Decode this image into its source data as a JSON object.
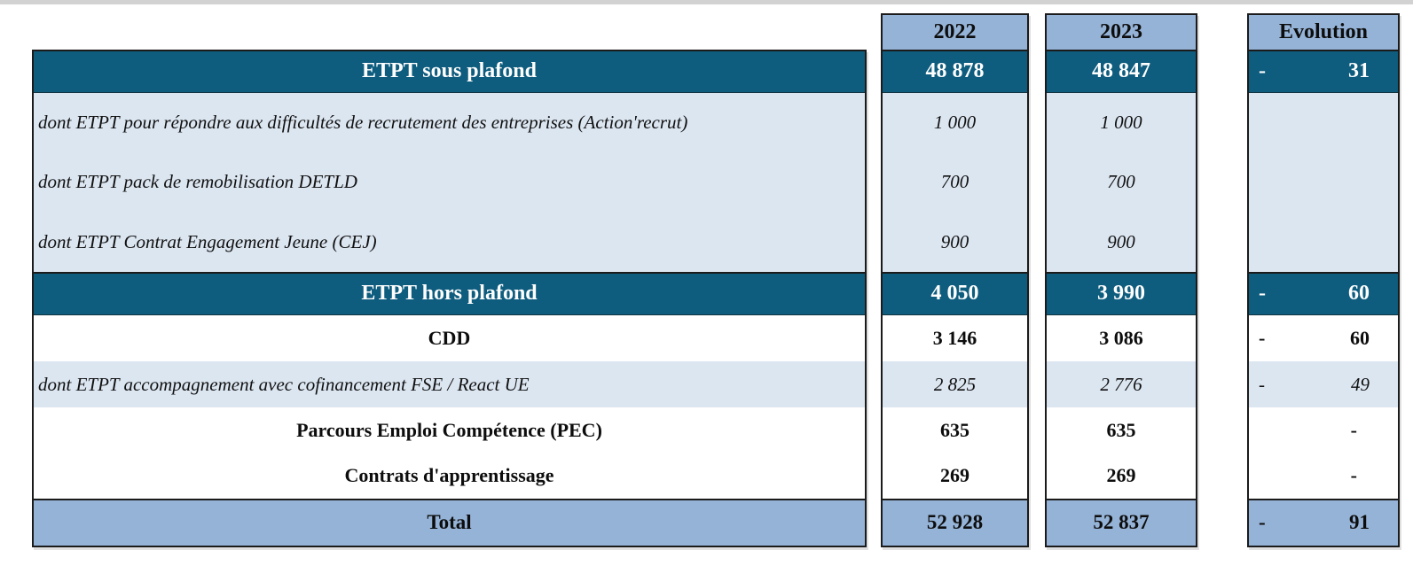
{
  "page": {
    "top_strip_color": "#d2d2d2",
    "background": "#ffffff"
  },
  "colors": {
    "section_teal": "#0e5c7e",
    "header_blue": "#95b3d7",
    "detail_light_blue": "#dce6f1",
    "total_blue": "#95b3d7",
    "border_black": "#1b1b1b",
    "section_text": "#ffffff",
    "body_text": "#000000"
  },
  "table": {
    "columns": [
      "2022",
      "2023",
      "Evolution"
    ],
    "rows": [
      {
        "label": "ETPT sous plafond",
        "v2022": "48 878",
        "v2023": "48 847",
        "evo": {
          "sign": "-",
          "value": "31"
        }
      },
      {
        "label": "dont ETPT pour répondre aux difficultés de recrutement des entreprises (Action'recrut)",
        "v2022": "1 000",
        "v2023": "1 000",
        "evo": {
          "sign": "",
          "value": ""
        }
      },
      {
        "label": "dont ETPT pack de remobilisation DETLD",
        "v2022": "700",
        "v2023": "700",
        "evo": {
          "sign": "",
          "value": ""
        }
      },
      {
        "label": "dont ETPT Contrat Engagement Jeune (CEJ)",
        "v2022": "900",
        "v2023": "900",
        "evo": {
          "sign": "",
          "value": ""
        }
      },
      {
        "label": "ETPT hors plafond",
        "v2022": "4 050",
        "v2023": "3 990",
        "evo": {
          "sign": "-",
          "value": "60"
        }
      },
      {
        "label": "CDD",
        "v2022": "3 146",
        "v2023": "3 086",
        "evo": {
          "sign": "-",
          "value": "60"
        }
      },
      {
        "label": "dont ETPT accompagnement avec cofinancement FSE / React UE",
        "v2022": "2 825",
        "v2023": "2 776",
        "evo": {
          "sign": "-",
          "value": "49"
        }
      },
      {
        "label": "Parcours Emploi Compétence (PEC)",
        "v2022": "635",
        "v2023": "635",
        "evo": {
          "sign": "",
          "value": "-"
        }
      },
      {
        "label": "Contrats d'apprentissage",
        "v2022": "269",
        "v2023": "269",
        "evo": {
          "sign": "",
          "value": "-"
        }
      },
      {
        "label": "Total",
        "v2022": "52 928",
        "v2023": "52 837",
        "evo": {
          "sign": "-",
          "value": "91"
        }
      }
    ]
  },
  "chart_data": {
    "type": "table",
    "columns": [
      "",
      "2022",
      "2023",
      "Evolution"
    ],
    "rows": [
      [
        "ETPT sous plafond",
        48878,
        48847,
        -31
      ],
      [
        "dont ETPT pour répondre aux difficultés de recrutement des entreprises (Action'recrut)",
        1000,
        1000,
        null
      ],
      [
        "dont ETPT pack de remobilisation DETLD",
        700,
        700,
        null
      ],
      [
        "dont ETPT Contrat Engagement Jeune (CEJ)",
        900,
        900,
        null
      ],
      [
        "ETPT hors plafond",
        4050,
        3990,
        -60
      ],
      [
        "CDD",
        3146,
        3086,
        -60
      ],
      [
        "dont ETPT accompagnement avec cofinancement FSE / React UE",
        2825,
        2776,
        -49
      ],
      [
        "Parcours Emploi Compétence (PEC)",
        635,
        635,
        0
      ],
      [
        "Contrats d'apprentissage",
        269,
        269,
        0
      ],
      [
        "Total",
        52928,
        52837,
        -91
      ]
    ]
  }
}
